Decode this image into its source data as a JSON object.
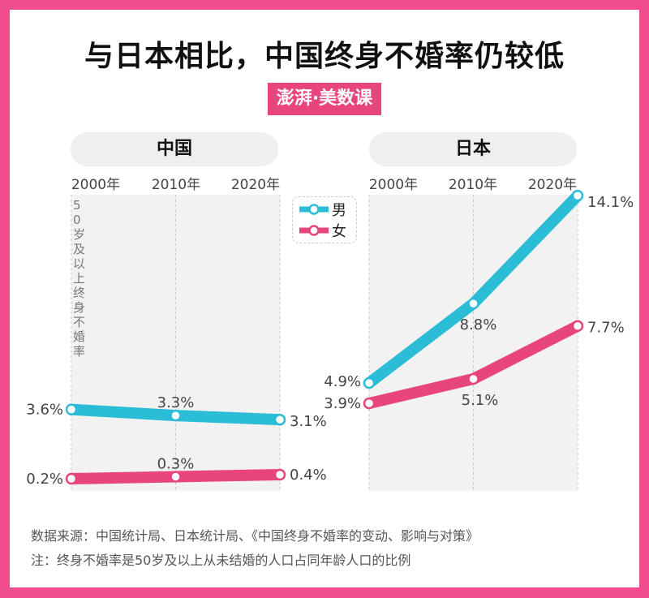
{
  "title": "与日本相比，中国终身不婚率仍较低",
  "logo": "澎湃·美数课",
  "legend": [
    {
      "name": "男",
      "color": "#2bbcd6"
    },
    {
      "name": "女",
      "color": "#e8457f"
    }
  ],
  "ylabel": "50岁及以上终身不婚率",
  "footer": {
    "source": "数据来源：中国统计局、日本统计局、《中国终身不婚率的变动、影响与对策》",
    "note": "注：终身不婚率是50岁及以上从未结婚的人口占同年龄人口的比例"
  },
  "colors": {
    "border": "#ef4c8b",
    "male": "#2bbcd6",
    "female": "#e8457f"
  },
  "chart_data": [
    {
      "type": "line",
      "title": "中国",
      "categories": [
        "2000年",
        "2010年",
        "2020年"
      ],
      "unit": "%",
      "series": [
        {
          "name": "男",
          "values": [
            3.6,
            3.3,
            3.1
          ],
          "labels": [
            "3.6%",
            "3.3%",
            "3.1%"
          ]
        },
        {
          "name": "女",
          "values": [
            0.2,
            0.3,
            0.4
          ],
          "labels": [
            "0.2%",
            "0.3%",
            "0.4%"
          ]
        }
      ]
    },
    {
      "type": "line",
      "title": "日本",
      "categories": [
        "2000年",
        "2010年",
        "2020年"
      ],
      "unit": "%",
      "series": [
        {
          "name": "男",
          "values": [
            4.9,
            8.8,
            14.1
          ],
          "labels": [
            "4.9%",
            "8.8%",
            "14.1%"
          ]
        },
        {
          "name": "女",
          "values": [
            3.9,
            5.1,
            7.7
          ],
          "labels": [
            "3.9%",
            "5.1%",
            "7.7%"
          ]
        }
      ]
    }
  ]
}
